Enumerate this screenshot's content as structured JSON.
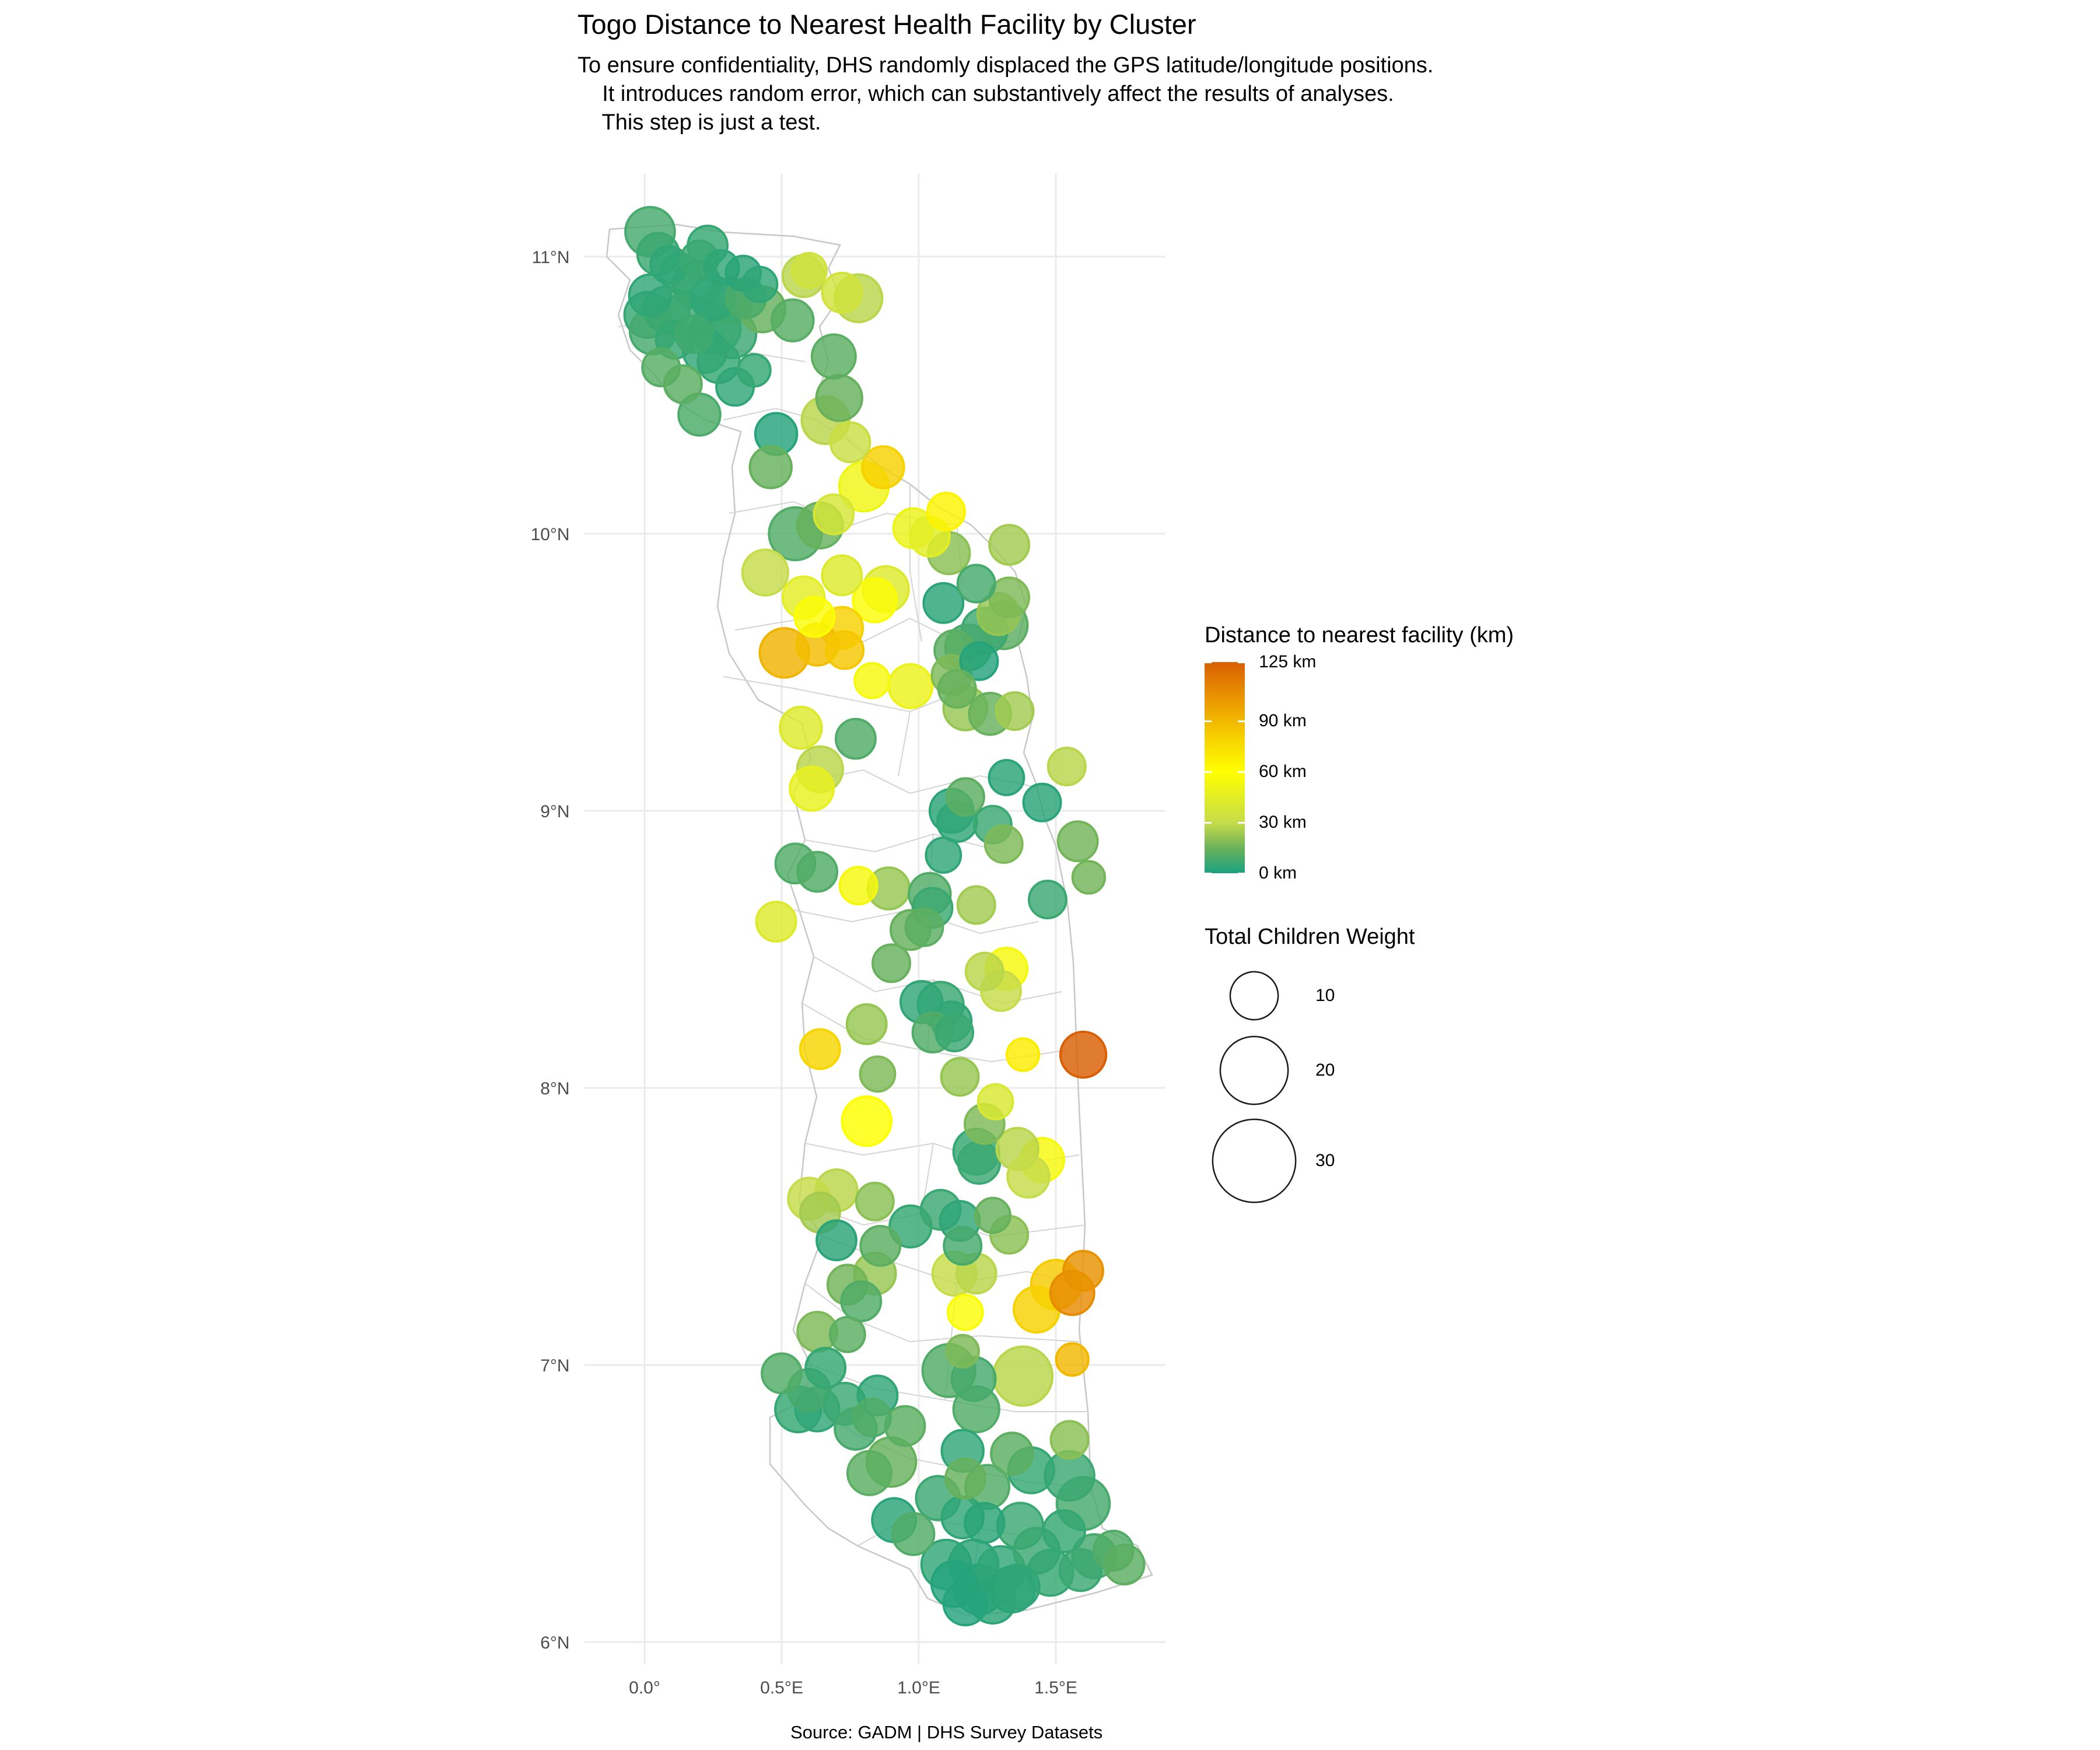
{
  "title": "Togo Distance to Nearest Health Facility by Cluster",
  "subtitle": "To ensure confidentiality, DHS randomly displaced the GPS latitude/longitude positions.\n    It introduces random error, which can substantively affect the results of analyses.\n    This step is just a test.",
  "caption": "Source: GADM | DHS Survey Datasets",
  "axes": {
    "x_ticks": [
      {
        "value": 0.0,
        "label": "0.0°"
      },
      {
        "value": 0.5,
        "label": "0.5°E"
      },
      {
        "value": 1.0,
        "label": "1.0°E"
      },
      {
        "value": 1.5,
        "label": "1.5°E"
      }
    ],
    "y_ticks": [
      {
        "value": 6,
        "label": "6°N"
      },
      {
        "value": 7,
        "label": "7°N"
      },
      {
        "value": 8,
        "label": "8°N"
      },
      {
        "value": 9,
        "label": "9°N"
      },
      {
        "value": 10,
        "label": "10°N"
      },
      {
        "value": 11,
        "label": "11°N"
      }
    ],
    "x_range": [
      -0.22,
      1.9
    ],
    "y_range": [
      5.92,
      11.3
    ]
  },
  "legend_color": {
    "title": "Distance to nearest facility (km)",
    "labels": [
      "125 km",
      "90 km",
      "60 km",
      "30 km",
      "0 km"
    ],
    "values": [
      125,
      90,
      60,
      30,
      0
    ],
    "colors": [
      "#d95f02",
      "#ec9f00",
      "#ffff00",
      "#c6dc49",
      "#1aa180"
    ]
  },
  "legend_size": {
    "title": "Total Children Weight",
    "labels": [
      "10",
      "20",
      "30"
    ],
    "values": [
      10,
      20,
      30
    ]
  },
  "chart_data": {
    "type": "scatter",
    "x_variable": "longitude",
    "y_variable": "latitude",
    "color_variable": "distance_km",
    "size_variable": "total_children_weight",
    "points": [
      {
        "lon": 0.02,
        "lat": 11.09,
        "d": 8,
        "w": 14
      },
      {
        "lon": 0.05,
        "lat": 11.01,
        "d": 6,
        "w": 10
      },
      {
        "lon": 0.09,
        "lat": 10.97,
        "d": 4,
        "w": 8
      },
      {
        "lon": 0.13,
        "lat": 10.94,
        "d": 5,
        "w": 9
      },
      {
        "lon": 0.2,
        "lat": 10.99,
        "d": 6,
        "w": 8
      },
      {
        "lon": 0.23,
        "lat": 11.04,
        "d": 5,
        "w": 9
      },
      {
        "lon": 0.28,
        "lat": 10.96,
        "d": 4,
        "w": 7
      },
      {
        "lon": 0.36,
        "lat": 10.94,
        "d": 3,
        "w": 7
      },
      {
        "lon": 0.42,
        "lat": 10.9,
        "d": 4,
        "w": 7
      },
      {
        "lon": 0.02,
        "lat": 10.86,
        "d": 4,
        "w": 10
      },
      {
        "lon": 0.01,
        "lat": 10.79,
        "d": 5,
        "w": 12
      },
      {
        "lon": 0.03,
        "lat": 10.73,
        "d": 8,
        "w": 12
      },
      {
        "lon": 0.08,
        "lat": 10.81,
        "d": 6,
        "w": 12
      },
      {
        "lon": 0.15,
        "lat": 10.78,
        "d": 6,
        "w": 14
      },
      {
        "lon": 0.19,
        "lat": 10.9,
        "d": 5,
        "w": 13
      },
      {
        "lon": 0.25,
        "lat": 10.85,
        "d": 4,
        "w": 11
      },
      {
        "lon": 0.31,
        "lat": 10.84,
        "d": 7,
        "w": 12
      },
      {
        "lon": 0.37,
        "lat": 10.85,
        "d": 9,
        "w": 9
      },
      {
        "lon": 0.26,
        "lat": 10.74,
        "d": 5,
        "w": 14
      },
      {
        "lon": 0.32,
        "lat": 10.72,
        "d": 6,
        "w": 13
      },
      {
        "lon": 0.22,
        "lat": 10.66,
        "d": 4,
        "w": 11
      },
      {
        "lon": 0.27,
        "lat": 10.62,
        "d": 5,
        "w": 10
      },
      {
        "lon": 0.11,
        "lat": 10.7,
        "d": 5,
        "w": 8
      },
      {
        "lon": 0.18,
        "lat": 10.72,
        "d": 7,
        "w": 8
      },
      {
        "lon": 0.06,
        "lat": 10.6,
        "d": 11,
        "w": 8
      },
      {
        "lon": 0.14,
        "lat": 10.54,
        "d": 12,
        "w": 8
      },
      {
        "lon": 0.33,
        "lat": 10.53,
        "d": 4,
        "w": 8
      },
      {
        "lon": 0.4,
        "lat": 10.59,
        "d": 5,
        "w": 6
      },
      {
        "lon": 0.2,
        "lat": 10.43,
        "d": 9,
        "w": 10
      },
      {
        "lon": 0.43,
        "lat": 10.81,
        "d": 14,
        "w": 12
      },
      {
        "lon": 0.54,
        "lat": 10.77,
        "d": 11,
        "w": 10
      },
      {
        "lon": 0.58,
        "lat": 10.93,
        "d": 28,
        "w": 10
      },
      {
        "lon": 0.6,
        "lat": 10.95,
        "d": 35,
        "w": 7
      },
      {
        "lon": 0.72,
        "lat": 10.87,
        "d": 36,
        "w": 9
      },
      {
        "lon": 0.78,
        "lat": 10.85,
        "d": 28,
        "w": 13
      },
      {
        "lon": 0.69,
        "lat": 10.64,
        "d": 12,
        "w": 11
      },
      {
        "lon": 0.71,
        "lat": 10.49,
        "d": 14,
        "w": 12
      },
      {
        "lon": 0.66,
        "lat": 10.41,
        "d": 28,
        "w": 13
      },
      {
        "lon": 0.75,
        "lat": 10.33,
        "d": 32,
        "w": 9
      },
      {
        "lon": 0.48,
        "lat": 10.36,
        "d": 2,
        "w": 10
      },
      {
        "lon": 0.46,
        "lat": 10.24,
        "d": 14,
        "w": 10
      },
      {
        "lon": 0.8,
        "lat": 10.17,
        "d": 52,
        "w": 14
      },
      {
        "lon": 0.87,
        "lat": 10.24,
        "d": 80,
        "w": 10
      },
      {
        "lon": 0.69,
        "lat": 10.07,
        "d": 38,
        "w": 9
      },
      {
        "lon": 0.64,
        "lat": 10.03,
        "d": 14,
        "w": 12
      },
      {
        "lon": 0.55,
        "lat": 10.0,
        "d": 10,
        "w": 16
      },
      {
        "lon": 0.98,
        "lat": 10.02,
        "d": 50,
        "w": 9
      },
      {
        "lon": 1.04,
        "lat": 9.99,
        "d": 45,
        "w": 9
      },
      {
        "lon": 1.1,
        "lat": 10.08,
        "d": 65,
        "w": 8
      },
      {
        "lon": 1.11,
        "lat": 9.93,
        "d": 20,
        "w": 10
      },
      {
        "lon": 1.33,
        "lat": 9.96,
        "d": 24,
        "w": 9
      },
      {
        "lon": 0.44,
        "lat": 9.86,
        "d": 30,
        "w": 12
      },
      {
        "lon": 0.72,
        "lat": 9.85,
        "d": 42,
        "w": 9
      },
      {
        "lon": 0.88,
        "lat": 9.8,
        "d": 42,
        "w": 12
      },
      {
        "lon": 0.84,
        "lat": 9.76,
        "d": 58,
        "w": 11
      },
      {
        "lon": 0.58,
        "lat": 9.77,
        "d": 45,
        "w": 10
      },
      {
        "lon": 0.62,
        "lat": 9.7,
        "d": 58,
        "w": 9
      },
      {
        "lon": 0.72,
        "lat": 9.66,
        "d": 80,
        "w": 10
      },
      {
        "lon": 0.63,
        "lat": 9.6,
        "d": 88,
        "w": 10
      },
      {
        "lon": 0.73,
        "lat": 9.58,
        "d": 84,
        "w": 8
      },
      {
        "lon": 0.51,
        "lat": 9.57,
        "d": 92,
        "w": 14
      },
      {
        "lon": 1.21,
        "lat": 9.82,
        "d": 8,
        "w": 8
      },
      {
        "lon": 1.33,
        "lat": 9.77,
        "d": 18,
        "w": 9
      },
      {
        "lon": 1.29,
        "lat": 9.71,
        "d": 22,
        "w": 10
      },
      {
        "lon": 1.09,
        "lat": 9.75,
        "d": 3,
        "w": 9
      },
      {
        "lon": 1.24,
        "lat": 9.65,
        "d": 6,
        "w": 12
      },
      {
        "lon": 1.31,
        "lat": 9.67,
        "d": 12,
        "w": 13
      },
      {
        "lon": 1.18,
        "lat": 9.59,
        "d": 8,
        "w": 12
      },
      {
        "lon": 1.13,
        "lat": 9.58,
        "d": 12,
        "w": 9
      },
      {
        "lon": 1.22,
        "lat": 9.54,
        "d": 2,
        "w": 8
      },
      {
        "lon": 0.83,
        "lat": 9.47,
        "d": 55,
        "w": 7
      },
      {
        "lon": 0.97,
        "lat": 9.45,
        "d": 50,
        "w": 11
      },
      {
        "lon": 1.12,
        "lat": 9.49,
        "d": 18,
        "w": 9
      },
      {
        "lon": 1.14,
        "lat": 9.44,
        "d": 14,
        "w": 8
      },
      {
        "lon": 1.17,
        "lat": 9.37,
        "d": 22,
        "w": 11
      },
      {
        "lon": 1.26,
        "lat": 9.35,
        "d": 14,
        "w": 10
      },
      {
        "lon": 1.35,
        "lat": 9.36,
        "d": 24,
        "w": 8
      },
      {
        "lon": 0.57,
        "lat": 9.3,
        "d": 42,
        "w": 10
      },
      {
        "lon": 0.77,
        "lat": 9.26,
        "d": 10,
        "w": 9
      },
      {
        "lon": 0.64,
        "lat": 9.15,
        "d": 28,
        "w": 12
      },
      {
        "lon": 0.61,
        "lat": 9.08,
        "d": 48,
        "w": 11
      },
      {
        "lon": 1.32,
        "lat": 9.12,
        "d": 3,
        "w": 7
      },
      {
        "lon": 1.54,
        "lat": 9.16,
        "d": 28,
        "w": 8
      },
      {
        "lon": 1.17,
        "lat": 9.05,
        "d": 12,
        "w": 8
      },
      {
        "lon": 1.12,
        "lat": 9.0,
        "d": 3,
        "w": 11
      },
      {
        "lon": 1.14,
        "lat": 8.96,
        "d": 4,
        "w": 9
      },
      {
        "lon": 1.27,
        "lat": 8.95,
        "d": 6,
        "w": 8
      },
      {
        "lon": 1.45,
        "lat": 9.03,
        "d": 3,
        "w": 8
      },
      {
        "lon": 1.31,
        "lat": 8.88,
        "d": 18,
        "w": 8
      },
      {
        "lon": 1.58,
        "lat": 8.89,
        "d": 16,
        "w": 9
      },
      {
        "lon": 0.55,
        "lat": 8.81,
        "d": 10,
        "w": 9
      },
      {
        "lon": 0.63,
        "lat": 8.78,
        "d": 10,
        "w": 9
      },
      {
        "lon": 1.09,
        "lat": 8.84,
        "d": 4,
        "w": 7
      },
      {
        "lon": 1.62,
        "lat": 8.76,
        "d": 16,
        "w": 6
      },
      {
        "lon": 0.78,
        "lat": 8.73,
        "d": 55,
        "w": 8
      },
      {
        "lon": 0.89,
        "lat": 8.72,
        "d": 22,
        "w": 10
      },
      {
        "lon": 1.04,
        "lat": 8.7,
        "d": 10,
        "w": 10
      },
      {
        "lon": 1.05,
        "lat": 8.65,
        "d": 6,
        "w": 9
      },
      {
        "lon": 1.21,
        "lat": 8.66,
        "d": 24,
        "w": 8
      },
      {
        "lon": 1.47,
        "lat": 8.68,
        "d": 6,
        "w": 8
      },
      {
        "lon": 0.48,
        "lat": 8.6,
        "d": 42,
        "w": 9
      },
      {
        "lon": 0.97,
        "lat": 8.57,
        "d": 14,
        "w": 9
      },
      {
        "lon": 1.02,
        "lat": 8.58,
        "d": 12,
        "w": 8
      },
      {
        "lon": 0.9,
        "lat": 8.45,
        "d": 14,
        "w": 8
      },
      {
        "lon": 1.24,
        "lat": 8.42,
        "d": 28,
        "w": 8
      },
      {
        "lon": 1.32,
        "lat": 8.43,
        "d": 55,
        "w": 10
      },
      {
        "lon": 1.3,
        "lat": 8.35,
        "d": 30,
        "w": 9
      },
      {
        "lon": 1.01,
        "lat": 8.31,
        "d": 4,
        "w": 10
      },
      {
        "lon": 1.08,
        "lat": 8.3,
        "d": 6,
        "w": 12
      },
      {
        "lon": 1.12,
        "lat": 8.24,
        "d": 4,
        "w": 9
      },
      {
        "lon": 0.81,
        "lat": 8.23,
        "d": 22,
        "w": 9
      },
      {
        "lon": 1.05,
        "lat": 8.2,
        "d": 10,
        "w": 9
      },
      {
        "lon": 1.13,
        "lat": 8.2,
        "d": 6,
        "w": 8
      },
      {
        "lon": 0.64,
        "lat": 8.14,
        "d": 78,
        "w": 9
      },
      {
        "lon": 1.38,
        "lat": 8.12,
        "d": 68,
        "w": 6
      },
      {
        "lon": 1.6,
        "lat": 8.12,
        "d": 125,
        "w": 12
      },
      {
        "lon": 0.85,
        "lat": 8.05,
        "d": 18,
        "w": 7
      },
      {
        "lon": 1.15,
        "lat": 8.04,
        "d": 22,
        "w": 8
      },
      {
        "lon": 1.28,
        "lat": 7.95,
        "d": 40,
        "w": 7
      },
      {
        "lon": 0.81,
        "lat": 7.88,
        "d": 60,
        "w": 14
      },
      {
        "lon": 1.24,
        "lat": 7.87,
        "d": 18,
        "w": 9
      },
      {
        "lon": 1.21,
        "lat": 7.77,
        "d": 5,
        "w": 12
      },
      {
        "lon": 1.22,
        "lat": 7.73,
        "d": 6,
        "w": 10
      },
      {
        "lon": 1.36,
        "lat": 7.78,
        "d": 28,
        "w": 10
      },
      {
        "lon": 1.45,
        "lat": 7.74,
        "d": 55,
        "w": 11
      },
      {
        "lon": 1.4,
        "lat": 7.68,
        "d": 30,
        "w": 10
      },
      {
        "lon": 0.7,
        "lat": 7.63,
        "d": 28,
        "w": 10
      },
      {
        "lon": 0.6,
        "lat": 7.6,
        "d": 30,
        "w": 10
      },
      {
        "lon": 0.84,
        "lat": 7.59,
        "d": 20,
        "w": 8
      },
      {
        "lon": 0.64,
        "lat": 7.55,
        "d": 24,
        "w": 9
      },
      {
        "lon": 1.08,
        "lat": 7.56,
        "d": 6,
        "w": 9
      },
      {
        "lon": 1.15,
        "lat": 7.52,
        "d": 4,
        "w": 9
      },
      {
        "lon": 1.27,
        "lat": 7.54,
        "d": 14,
        "w": 7
      },
      {
        "lon": 0.97,
        "lat": 7.5,
        "d": 5,
        "w": 10
      },
      {
        "lon": 1.33,
        "lat": 7.47,
        "d": 20,
        "w": 8
      },
      {
        "lon": 0.7,
        "lat": 7.45,
        "d": 3,
        "w": 9
      },
      {
        "lon": 0.86,
        "lat": 7.43,
        "d": 12,
        "w": 9
      },
      {
        "lon": 1.16,
        "lat": 7.43,
        "d": 8,
        "w": 8
      },
      {
        "lon": 0.84,
        "lat": 7.33,
        "d": 22,
        "w": 10
      },
      {
        "lon": 1.13,
        "lat": 7.33,
        "d": 30,
        "w": 11
      },
      {
        "lon": 1.21,
        "lat": 7.33,
        "d": 28,
        "w": 9
      },
      {
        "lon": 0.74,
        "lat": 7.29,
        "d": 16,
        "w": 9
      },
      {
        "lon": 0.79,
        "lat": 7.23,
        "d": 10,
        "w": 9
      },
      {
        "lon": 1.6,
        "lat": 7.34,
        "d": 105,
        "w": 9
      },
      {
        "lon": 1.5,
        "lat": 7.29,
        "d": 82,
        "w": 14
      },
      {
        "lon": 1.56,
        "lat": 7.26,
        "d": 108,
        "w": 11
      },
      {
        "lon": 1.43,
        "lat": 7.2,
        "d": 80,
        "w": 12
      },
      {
        "lon": 1.17,
        "lat": 7.19,
        "d": 58,
        "w": 7
      },
      {
        "lon": 0.63,
        "lat": 7.12,
        "d": 18,
        "w": 9
      },
      {
        "lon": 0.74,
        "lat": 7.11,
        "d": 12,
        "w": 7
      },
      {
        "lon": 1.16,
        "lat": 7.05,
        "d": 18,
        "w": 6
      },
      {
        "lon": 1.56,
        "lat": 7.02,
        "d": 90,
        "w": 6
      },
      {
        "lon": 1.11,
        "lat": 6.98,
        "d": 10,
        "w": 16
      },
      {
        "lon": 1.38,
        "lat": 6.96,
        "d": 28,
        "w": 20
      },
      {
        "lon": 1.2,
        "lat": 6.95,
        "d": 8,
        "w": 11
      },
      {
        "lon": 0.5,
        "lat": 6.97,
        "d": 10,
        "w": 9
      },
      {
        "lon": 0.6,
        "lat": 6.91,
        "d": 8,
        "w": 10
      },
      {
        "lon": 0.66,
        "lat": 6.99,
        "d": 5,
        "w": 9
      },
      {
        "lon": 0.56,
        "lat": 6.84,
        "d": 5,
        "w": 12
      },
      {
        "lon": 0.63,
        "lat": 6.84,
        "d": 4,
        "w": 11
      },
      {
        "lon": 0.73,
        "lat": 6.86,
        "d": 6,
        "w": 10
      },
      {
        "lon": 0.85,
        "lat": 6.89,
        "d": 4,
        "w": 9
      },
      {
        "lon": 0.83,
        "lat": 6.81,
        "d": 10,
        "w": 8
      },
      {
        "lon": 0.77,
        "lat": 6.77,
        "d": 8,
        "w": 10
      },
      {
        "lon": 0.95,
        "lat": 6.78,
        "d": 12,
        "w": 9
      },
      {
        "lon": 1.21,
        "lat": 6.84,
        "d": 10,
        "w": 12
      },
      {
        "lon": 1.55,
        "lat": 6.73,
        "d": 20,
        "w": 8
      },
      {
        "lon": 1.16,
        "lat": 6.69,
        "d": 4,
        "w": 10
      },
      {
        "lon": 0.9,
        "lat": 6.65,
        "d": 14,
        "w": 14
      },
      {
        "lon": 0.82,
        "lat": 6.61,
        "d": 12,
        "w": 11
      },
      {
        "lon": 1.34,
        "lat": 6.68,
        "d": 12,
        "w": 10
      },
      {
        "lon": 1.41,
        "lat": 6.62,
        "d": 5,
        "w": 12
      },
      {
        "lon": 1.55,
        "lat": 6.6,
        "d": 6,
        "w": 14
      },
      {
        "lon": 1.17,
        "lat": 6.59,
        "d": 14,
        "w": 9
      },
      {
        "lon": 1.25,
        "lat": 6.56,
        "d": 10,
        "w": 11
      },
      {
        "lon": 1.07,
        "lat": 6.52,
        "d": 6,
        "w": 11
      },
      {
        "lon": 1.6,
        "lat": 6.5,
        "d": 8,
        "w": 16
      },
      {
        "lon": 1.16,
        "lat": 6.45,
        "d": 4,
        "w": 10
      },
      {
        "lon": 0.91,
        "lat": 6.44,
        "d": 3,
        "w": 11
      },
      {
        "lon": 0.98,
        "lat": 6.39,
        "d": 10,
        "w": 10
      },
      {
        "lon": 1.24,
        "lat": 6.43,
        "d": 3,
        "w": 9
      },
      {
        "lon": 1.37,
        "lat": 6.42,
        "d": 6,
        "w": 12
      },
      {
        "lon": 1.53,
        "lat": 6.4,
        "d": 5,
        "w": 10
      },
      {
        "lon": 1.71,
        "lat": 6.33,
        "d": 10,
        "w": 9
      },
      {
        "lon": 1.75,
        "lat": 6.28,
        "d": 12,
        "w": 9
      },
      {
        "lon": 1.64,
        "lat": 6.31,
        "d": 8,
        "w": 11
      },
      {
        "lon": 1.43,
        "lat": 6.33,
        "d": 6,
        "w": 12
      },
      {
        "lon": 1.1,
        "lat": 6.28,
        "d": 4,
        "w": 14
      },
      {
        "lon": 1.2,
        "lat": 6.28,
        "d": 3,
        "w": 14
      },
      {
        "lon": 1.3,
        "lat": 6.26,
        "d": 4,
        "w": 13
      },
      {
        "lon": 1.48,
        "lat": 6.25,
        "d": 5,
        "w": 12
      },
      {
        "lon": 1.59,
        "lat": 6.26,
        "d": 6,
        "w": 10
      },
      {
        "lon": 1.13,
        "lat": 6.21,
        "d": 2,
        "w": 12
      },
      {
        "lon": 1.22,
        "lat": 6.19,
        "d": 2,
        "w": 14
      },
      {
        "lon": 1.34,
        "lat": 6.19,
        "d": 3,
        "w": 12
      },
      {
        "lon": 1.17,
        "lat": 6.14,
        "d": 2,
        "w": 11
      },
      {
        "lon": 1.27,
        "lat": 6.15,
        "d": 3,
        "w": 12
      },
      {
        "lon": 1.36,
        "lat": 6.2,
        "d": 4,
        "w": 11
      }
    ]
  }
}
